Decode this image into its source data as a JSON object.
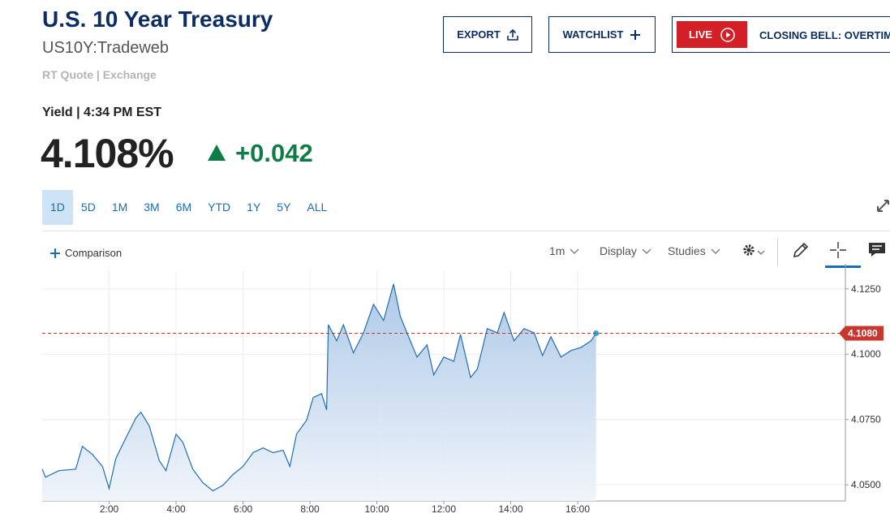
{
  "header": {
    "title": "U.S. 10 Year Treasury",
    "symbol": "US10Y:Tradeweb",
    "quote_source": "RT Quote | Exchange"
  },
  "buttons": {
    "export": "EXPORT",
    "watchlist": "WATCHLIST",
    "live": "LIVE",
    "program": "CLOSING BELL: OVERTIME"
  },
  "quote": {
    "label": "Yield | 4:34 PM EST",
    "last": "4.108%",
    "change": "+0.042"
  },
  "ranges": [
    "1D",
    "5D",
    "1M",
    "3M",
    "6M",
    "YTD",
    "1Y",
    "5Y",
    "ALL"
  ],
  "toolbar": {
    "comparison": "Comparison",
    "interval": "1m",
    "display": "Display",
    "studies": "Studies"
  },
  "chart_data": {
    "type": "area",
    "color": "#1f6fb2",
    "x": [
      0,
      0.1,
      0.5,
      1.0,
      1.2,
      1.5,
      1.8,
      2.0,
      2.2,
      2.5,
      2.8,
      2.95,
      3.2,
      3.5,
      3.7,
      4.0,
      4.2,
      4.5,
      4.8,
      5.1,
      5.4,
      5.7,
      6.0,
      6.3,
      6.6,
      6.9,
      7.2,
      7.4,
      7.6,
      7.9,
      8.1,
      8.35,
      8.5,
      8.55,
      8.8,
      9.0,
      9.3,
      9.6,
      9.9,
      10.2,
      10.5,
      10.7,
      10.9,
      11.2,
      11.5,
      11.7,
      12.0,
      12.3,
      12.5,
      12.8,
      13.0,
      13.3,
      13.6,
      13.8,
      14.1,
      14.4,
      14.7,
      14.95,
      15.2,
      15.5,
      15.8,
      16.1,
      16.4,
      16.55
    ],
    "values": [
      4.056,
      4.0529,
      4.0554,
      4.056,
      4.0647,
      4.0616,
      4.057,
      4.0486,
      4.0601,
      4.0679,
      4.0756,
      4.0778,
      4.0725,
      4.0592,
      4.0554,
      4.0694,
      4.0663,
      4.056,
      4.0508,
      4.0477,
      4.0498,
      4.0539,
      4.057,
      4.0623,
      4.0641,
      4.0623,
      4.0632,
      4.057,
      4.0694,
      4.0747,
      4.0834,
      4.0849,
      4.0787,
      4.1113,
      4.1051,
      4.1113,
      4.1005,
      4.1082,
      4.1191,
      4.1129,
      4.1269,
      4.1145,
      4.1082,
      4.0989,
      4.1036,
      4.0921,
      4.0989,
      4.0973,
      4.1076,
      4.0911,
      4.0943,
      4.1098,
      4.1082,
      4.116,
      4.1051,
      4.1098,
      4.1082,
      4.0995,
      4.1067,
      4.0989,
      4.1014,
      4.1026,
      4.1051,
      4.108
    ],
    "xlim": [
      0,
      24
    ],
    "xticks": [
      {
        "value": 2,
        "label": "2:00"
      },
      {
        "value": 4,
        "label": "4:00"
      },
      {
        "value": 6,
        "label": "6:00"
      },
      {
        "value": 8,
        "label": "8:00"
      },
      {
        "value": 10,
        "label": "10:00"
      },
      {
        "value": 12,
        "label": "12:00"
      },
      {
        "value": 14,
        "label": "14:00"
      },
      {
        "value": 16,
        "label": "16:00"
      }
    ],
    "ylim": [
      4.0438,
      4.1321
    ],
    "yticks": [
      {
        "value": 4.05,
        "label": "4.0500"
      },
      {
        "value": 4.075,
        "label": "4.0750"
      },
      {
        "value": 4.1,
        "label": "4.1000"
      },
      {
        "value": 4.125,
        "label": "4.1250"
      }
    ],
    "reference": {
      "value": 4.108,
      "label": "4.1080",
      "color": "#c8372d"
    },
    "grid": true
  }
}
